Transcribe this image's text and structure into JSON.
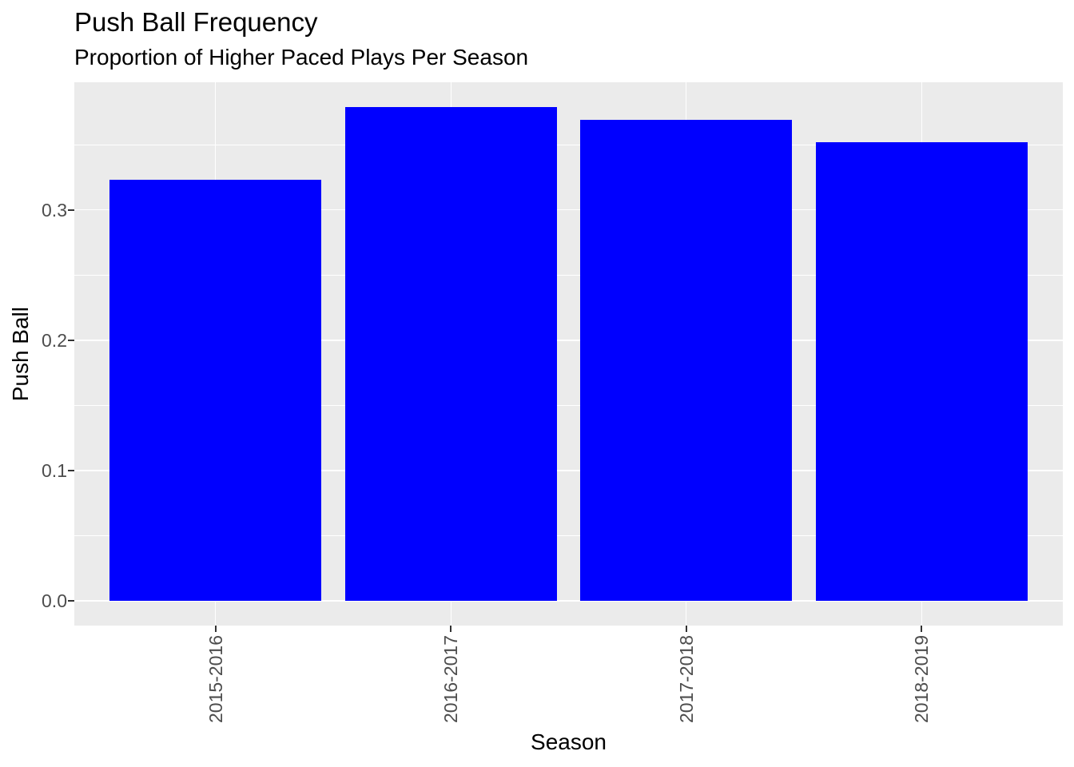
{
  "chart_data": {
    "type": "bar",
    "title": "Push Ball Frequency",
    "subtitle": "Proportion of Higher Paced Plays Per Season",
    "xlabel": "Season",
    "ylabel": "Push Ball",
    "categories": [
      "2015-2016",
      "2016-2017",
      "2017-2018",
      "2018-2019"
    ],
    "values": [
      0.323,
      0.379,
      0.369,
      0.352
    ],
    "y_ticks": [
      0.0,
      0.1,
      0.2,
      0.3
    ],
    "y_tick_labels": [
      "0.0",
      "0.1",
      "0.2",
      "0.3"
    ],
    "y_minor_ticks": [
      0.05,
      0.15,
      0.25,
      0.35
    ],
    "ylim": [
      -0.019,
      0.398
    ],
    "grid": true,
    "legend_position": "none",
    "bar_color": "#0000FF",
    "panel_background_color": "#EBEBEB",
    "grid_color": "#FFFFFF",
    "tick_label_color": "#4D4D4D",
    "tick_mark_color": "#333333",
    "text_color": "#000000",
    "bar_width_fraction": 0.9,
    "x_tick_labels_rotated_degrees": 90
  }
}
